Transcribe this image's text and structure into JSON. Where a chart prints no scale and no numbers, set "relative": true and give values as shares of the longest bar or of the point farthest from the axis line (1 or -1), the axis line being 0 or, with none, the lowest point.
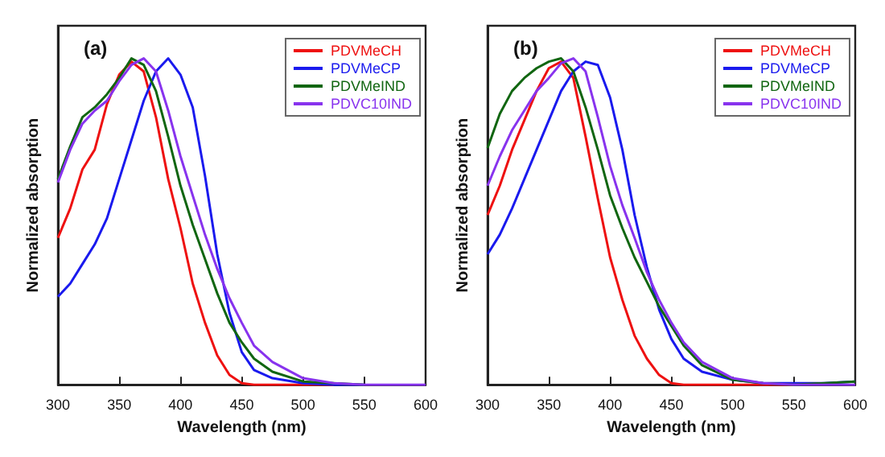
{
  "chart_data": [
    {
      "type": "line",
      "annotations": [
        "(a)"
      ],
      "xlabel": "Wavelength (nm)",
      "ylabel": "Normalized absorption",
      "relative": true,
      "x": [
        300,
        310,
        320,
        330,
        340,
        350,
        360,
        370,
        380,
        390,
        400,
        410,
        420,
        430,
        440,
        450,
        460,
        475,
        500,
        525,
        550,
        575,
        600
      ],
      "xlim": [
        300,
        600
      ],
      "xticks": [
        300,
        350,
        400,
        450,
        500,
        550,
        600
      ],
      "legend": "top right",
      "grid": false,
      "marker": "none",
      "line_style": "solid",
      "series": [
        {
          "name": "PDVMeCH",
          "color": "#ee1111",
          "values": [
            0.45,
            0.54,
            0.66,
            0.72,
            0.86,
            0.95,
            0.99,
            0.96,
            0.82,
            0.63,
            0.48,
            0.31,
            0.19,
            0.09,
            0.03,
            0.005,
            0,
            0,
            0,
            0,
            null,
            null,
            null
          ]
        },
        {
          "name": "PDVMeCP",
          "color": "#1a1aee",
          "values": [
            0.27,
            0.31,
            0.37,
            0.43,
            0.51,
            0.63,
            0.75,
            0.87,
            0.96,
            1.0,
            0.95,
            0.85,
            0.64,
            0.4,
            0.22,
            0.1,
            0.045,
            0.02,
            0.005,
            0,
            0,
            null,
            null
          ]
        },
        {
          "name": "PDVMeIND",
          "color": "#116611",
          "values": [
            0.63,
            0.73,
            0.82,
            0.85,
            0.89,
            0.94,
            1.0,
            0.98,
            0.9,
            0.76,
            0.61,
            0.49,
            0.385,
            0.28,
            0.19,
            0.13,
            0.08,
            0.04,
            0.01,
            0.005,
            0,
            null,
            null
          ]
        },
        {
          "name": "PDVC10IND",
          "color": "#8833ee",
          "values": [
            0.62,
            0.72,
            0.8,
            0.84,
            0.87,
            0.93,
            0.98,
            1.0,
            0.96,
            0.84,
            0.7,
            0.58,
            0.46,
            0.355,
            0.265,
            0.19,
            0.12,
            0.07,
            0.02,
            0.005,
            0,
            0,
            0
          ]
        }
      ]
    },
    {
      "type": "line",
      "annotations": [
        "(b)"
      ],
      "xlabel": "Wavelength (nm)",
      "ylabel": "Normalized absorption",
      "relative": true,
      "x": [
        300,
        310,
        320,
        330,
        340,
        350,
        360,
        370,
        380,
        390,
        400,
        410,
        420,
        430,
        440,
        450,
        460,
        475,
        500,
        525,
        550,
        575,
        600
      ],
      "xlim": [
        300,
        600
      ],
      "xticks": [
        300,
        350,
        400,
        450,
        500,
        550,
        600
      ],
      "legend": "top right",
      "grid": false,
      "marker": "none",
      "line_style": "solid",
      "series": [
        {
          "name": "PDVMeCH",
          "color": "#ee1111",
          "values": [
            0.52,
            0.61,
            0.72,
            0.81,
            0.9,
            0.97,
            0.99,
            0.94,
            0.76,
            0.57,
            0.39,
            0.26,
            0.15,
            0.08,
            0.03,
            0.005,
            0,
            0,
            0,
            0,
            0,
            null,
            null
          ]
        },
        {
          "name": "PDVMeCP",
          "color": "#1a1aee",
          "values": [
            0.4,
            0.46,
            0.54,
            0.63,
            0.72,
            0.81,
            0.9,
            0.96,
            0.99,
            0.98,
            0.88,
            0.72,
            0.52,
            0.36,
            0.23,
            0.14,
            0.08,
            0.04,
            0.015,
            0.005,
            0.005,
            0.005,
            0.01
          ]
        },
        {
          "name": "PDVMeIND",
          "color": "#116611",
          "values": [
            0.725,
            0.83,
            0.9,
            0.94,
            0.97,
            0.99,
            1.0,
            0.96,
            0.85,
            0.72,
            0.58,
            0.48,
            0.39,
            0.315,
            0.24,
            0.18,
            0.12,
            0.06,
            0.015,
            0.005,
            0,
            0.005,
            0.01
          ]
        },
        {
          "name": "PDVC10IND",
          "color": "#8833ee",
          "values": [
            0.61,
            0.7,
            0.78,
            0.84,
            0.9,
            0.94,
            0.985,
            1.0,
            0.96,
            0.82,
            0.67,
            0.55,
            0.45,
            0.345,
            0.26,
            0.19,
            0.13,
            0.07,
            0.02,
            0.005,
            0,
            0,
            0
          ]
        }
      ]
    }
  ]
}
